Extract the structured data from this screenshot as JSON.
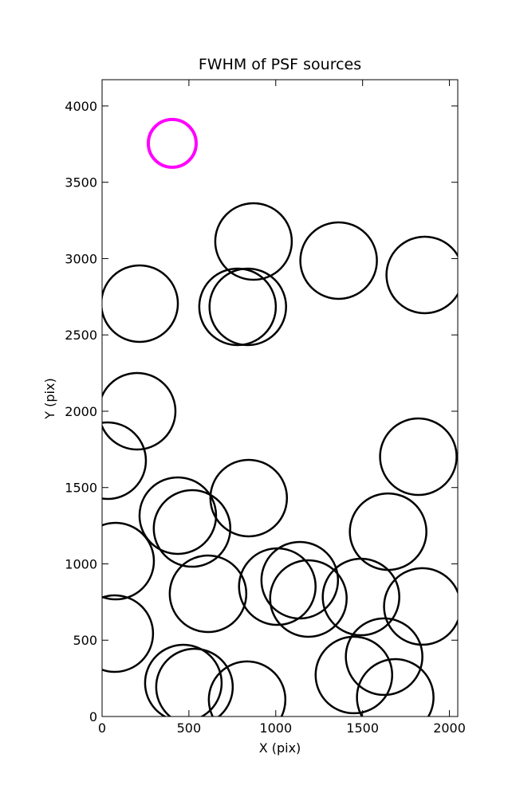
{
  "chart_data": {
    "type": "scatter",
    "title": "FWHM of PSF sources",
    "x_label": "X (pix)",
    "y_label": "Y (pix)",
    "xlim": [
      0,
      2048
    ],
    "ylim": [
      0,
      4172
    ],
    "xticks": [
      0,
      500,
      1000,
      1500,
      2000
    ],
    "yticks": [
      0,
      500,
      1000,
      1500,
      2000,
      2500,
      3000,
      3500,
      4000
    ],
    "series": [
      {
        "color": "#000000",
        "x": [
          872,
          1362,
          1858,
          216,
          780,
          839,
          202,
          32,
          1821,
          844,
          436,
          518,
          1647,
          78,
          1009,
          1138,
          1188,
          610,
          1491,
          1844,
          73,
          1624,
          468,
          532,
          1450,
          835,
          1688
        ],
        "values": [
          3112,
          2987,
          2893,
          2705,
          2684,
          2684,
          2000,
          1676,
          1702,
          1431,
          1316,
          1232,
          1211,
          1018,
          851,
          893,
          773,
          804,
          783,
          721,
          543,
          392,
          219,
          193,
          272,
          110,
          125
        ]
      },
      {
        "color": "#ff00ff",
        "x": [
          404
        ],
        "values": [
          3755
        ]
      }
    ]
  }
}
